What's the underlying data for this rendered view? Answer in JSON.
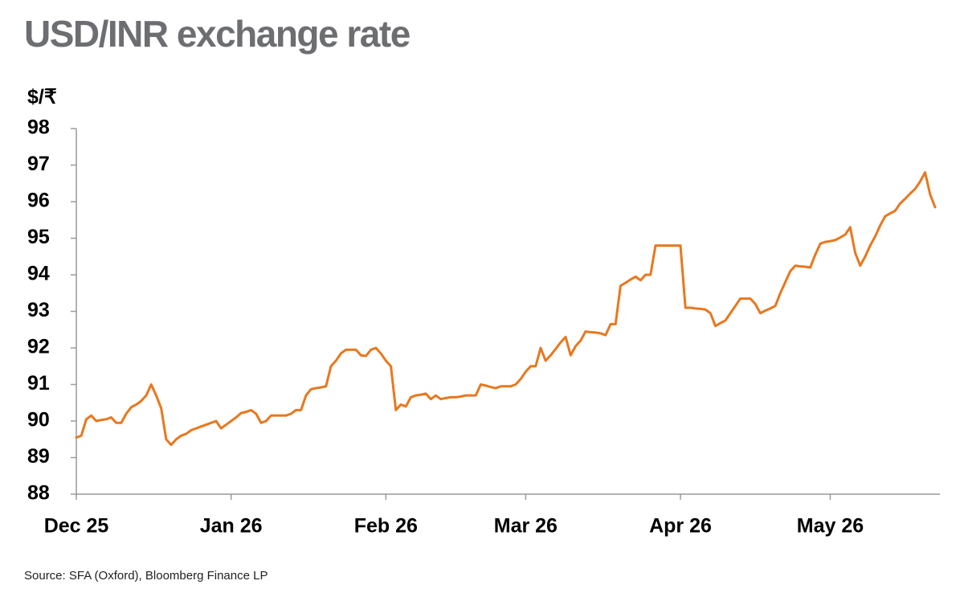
{
  "chart_data": {
    "type": "line",
    "title": "USD/INR exchange rate",
    "y_axis_label": "$/₹",
    "source": "Source: SFA (Oxford), Bloomberg Finance LP",
    "categories": [
      "Dec 25",
      null,
      null,
      null,
      null,
      null,
      null,
      null,
      null,
      null,
      null,
      null,
      null,
      null,
      null,
      null,
      null,
      null,
      null,
      null,
      null,
      null,
      null,
      null,
      null,
      null,
      null,
      null,
      null,
      null,
      null,
      "Jan 26",
      null,
      null,
      null,
      null,
      null,
      null,
      null,
      null,
      null,
      null,
      null,
      null,
      null,
      null,
      null,
      null,
      null,
      null,
      null,
      null,
      null,
      null,
      null,
      null,
      null,
      null,
      null,
      null,
      null,
      null,
      "Feb 26",
      null,
      null,
      null,
      null,
      null,
      null,
      null,
      null,
      null,
      null,
      null,
      null,
      null,
      null,
      null,
      null,
      null,
      null,
      null,
      null,
      null,
      null,
      null,
      null,
      null,
      null,
      null,
      "Mar 26",
      null,
      null,
      null,
      null,
      null,
      null,
      null,
      null,
      null,
      null,
      null,
      null,
      null,
      null,
      null,
      null,
      null,
      null,
      null,
      null,
      null,
      null,
      null,
      null,
      null,
      null,
      null,
      null,
      null,
      null,
      "Apr 26",
      null,
      null,
      null,
      null,
      null,
      null,
      null,
      null,
      null,
      null,
      null,
      null,
      null,
      null,
      null,
      null,
      null,
      null,
      null,
      null,
      null,
      null,
      null,
      null,
      null,
      null,
      null,
      null,
      null,
      "May 26",
      null,
      null,
      null,
      null,
      null,
      null,
      null,
      null,
      null,
      null,
      null,
      null,
      null,
      null,
      null,
      null,
      null,
      null,
      null,
      null,
      null
    ],
    "series": [
      {
        "name": "USD/INR",
        "color": "#e8781e",
        "values": [
          89.55,
          89.6,
          90.05,
          90.15,
          90.0,
          90.03,
          90.05,
          90.1,
          89.95,
          89.95,
          90.2,
          90.38,
          90.45,
          90.55,
          90.7,
          91.0,
          90.7,
          90.35,
          89.5,
          89.35,
          89.5,
          89.6,
          89.65,
          89.75,
          89.8,
          89.85,
          89.9,
          89.95,
          90.0,
          89.8,
          89.9,
          90.0,
          90.1,
          90.22,
          90.25,
          90.3,
          90.2,
          89.95,
          90.0,
          90.15,
          90.15,
          90.15,
          90.15,
          90.2,
          90.3,
          90.3,
          90.7,
          90.87,
          90.9,
          90.92,
          90.95,
          91.5,
          91.65,
          91.85,
          91.95,
          91.95,
          91.95,
          91.8,
          91.78,
          91.95,
          92.0,
          91.85,
          91.65,
          91.5,
          90.3,
          90.45,
          90.4,
          90.65,
          90.7,
          90.72,
          90.75,
          90.6,
          90.7,
          90.6,
          90.63,
          90.65,
          90.65,
          90.67,
          90.7,
          90.7,
          90.7,
          91.0,
          90.97,
          90.93,
          90.9,
          90.95,
          90.95,
          90.95,
          91.0,
          91.15,
          91.35,
          91.5,
          91.5,
          92.0,
          91.65,
          91.8,
          91.97,
          92.15,
          92.3,
          91.8,
          92.05,
          92.2,
          92.45,
          92.43,
          92.42,
          92.4,
          92.35,
          92.65,
          92.65,
          93.7,
          93.78,
          93.87,
          93.95,
          93.85,
          94.0,
          94.0,
          94.8,
          94.8,
          94.8,
          94.8,
          94.8,
          94.8,
          93.1,
          93.1,
          93.08,
          93.07,
          93.05,
          92.95,
          92.6,
          92.68,
          92.75,
          92.95,
          93.15,
          93.35,
          93.35,
          93.35,
          93.2,
          92.95,
          93.02,
          93.08,
          93.15,
          93.5,
          93.8,
          94.1,
          94.25,
          94.23,
          94.22,
          94.2,
          94.55,
          94.85,
          94.9,
          94.92,
          94.95,
          95.02,
          95.1,
          95.3,
          94.6,
          94.25,
          94.5,
          94.8,
          95.05,
          95.35,
          95.6,
          95.68,
          95.75,
          95.95,
          96.08,
          96.22,
          96.35,
          96.55,
          96.8,
          96.2,
          95.85
        ]
      }
    ],
    "ylim": [
      88,
      98
    ],
    "yticks": [
      88,
      89,
      90,
      91,
      92,
      93,
      94,
      95,
      96,
      97,
      98
    ],
    "grid": false
  }
}
